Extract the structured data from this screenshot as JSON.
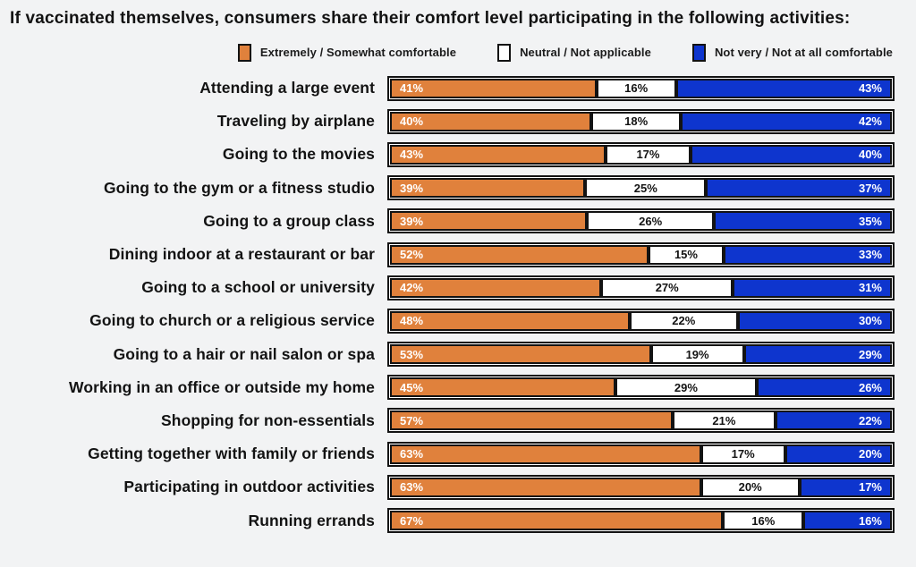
{
  "page": {
    "background": "#F2F3F4",
    "border_color": "#131313"
  },
  "title": "If vaccinated themselves, consumers share their comfort level participating in the following activities:",
  "colors": {
    "comfortable": "#E0813C",
    "neutral": "#FFFFFF",
    "uncomfortable": "#0E35CE"
  },
  "legend": [
    {
      "label": "Extremely / Somewhat comfortable",
      "color_key": "comfortable"
    },
    {
      "label": "Neutral / Not applicable",
      "color_key": "neutral"
    },
    {
      "label": "Not very / Not at all comfortable",
      "color_key": "uncomfortable"
    }
  ],
  "chart_data": {
    "type": "bar",
    "orientation": "horizontal",
    "stacked": true,
    "unit": "%",
    "title": "If vaccinated themselves, consumers share their comfort level participating in the following activities:",
    "xlim": [
      0,
      100
    ],
    "legend_position": "top",
    "value_labels": true,
    "grid": false,
    "categories": [
      "Attending a large event",
      "Traveling by airplane",
      "Going to the movies",
      "Going to the gym or a fitness studio",
      "Going to a group class",
      "Dining indoor at a restaurant or bar",
      "Going to a school or university",
      "Going to church or a religious service",
      "Going to a hair or nail salon or spa",
      "Working in an office or outside my home",
      "Shopping for non-essentials",
      "Getting together with family or friends",
      "Participating in outdoor activities",
      "Running errands"
    ],
    "series": [
      {
        "name": "Extremely / Somewhat comfortable",
        "color_key": "comfortable",
        "values": [
          41,
          40,
          43,
          39,
          39,
          52,
          42,
          48,
          53,
          45,
          57,
          63,
          63,
          67
        ]
      },
      {
        "name": "Neutral / Not applicable",
        "color_key": "neutral",
        "values": [
          16,
          18,
          17,
          25,
          26,
          15,
          27,
          22,
          19,
          29,
          21,
          17,
          20,
          16
        ]
      },
      {
        "name": "Not very / Not at all comfortable",
        "color_key": "uncomfortable",
        "values": [
          43,
          42,
          40,
          37,
          35,
          33,
          31,
          30,
          29,
          26,
          22,
          20,
          17,
          16
        ]
      }
    ]
  }
}
